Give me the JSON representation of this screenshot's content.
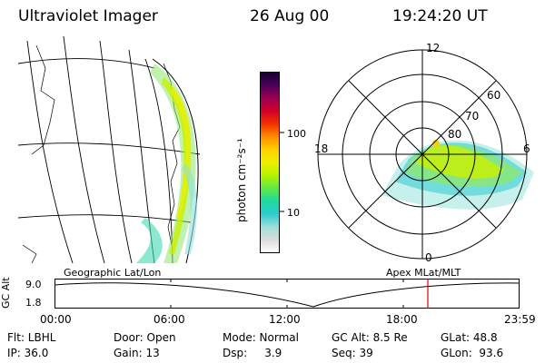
{
  "header": {
    "instrument": "Ultraviolet Imager",
    "date": "26 Aug 00",
    "time": "19:24:20 UT"
  },
  "colorbar": {
    "unit_label": "photon cm⁻²s⁻¹",
    "ticks": [
      "100",
      "10"
    ],
    "colors": [
      "#ffffff",
      "#dcdcdc",
      "#9edfd8",
      "#2ecbd0",
      "#1fd9a0",
      "#5fe84a",
      "#b6f200",
      "#eef000",
      "#ffd000",
      "#ff8c00",
      "#f23000",
      "#d0002a",
      "#9a0055",
      "#4a005a",
      "#14002e"
    ]
  },
  "panels": {
    "left_caption": "Geographic Lat/Lon",
    "right_caption": "Apex MLat/MLT"
  },
  "polar": {
    "mlt_labels": {
      "top": "12",
      "right": "6",
      "bottom": "0",
      "left": "18"
    },
    "lat_labels": [
      "60",
      "70",
      "80"
    ]
  },
  "altitude_plot": {
    "axis_title": "GC Alt",
    "y_ticks": [
      "9.0",
      "1.8"
    ],
    "x_ticks": [
      "00:00",
      "06:00",
      "12:00",
      "18:00",
      "23:59"
    ],
    "marker_color": "#e00000"
  },
  "info": {
    "row1": {
      "flt": "Flt: LBHL",
      "door": "Door: Open",
      "mode": "Mode: Normal",
      "gcalt": "GC Alt: 8.5 Re",
      "glat": "GLat:  48.8"
    },
    "row2": {
      "ip": "IP: 36.0",
      "gain": "Gain: 13",
      "dsp": "Dsp:     3.9",
      "seq": "Seq: 39",
      "glon": "GLon:  93.6"
    }
  }
}
